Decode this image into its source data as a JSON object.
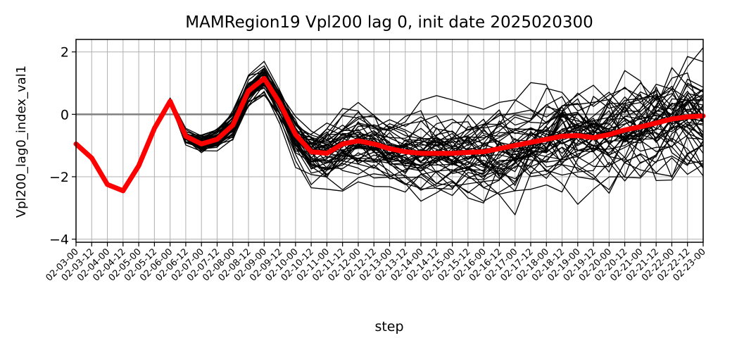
{
  "chart_data": {
    "type": "line",
    "title": "MAMRegion19 Vpl200 lag 0, init date 2025020300",
    "xlabel": "step",
    "ylabel": "Vpl200_lag0_index_val1",
    "ylim": [
      -4.1,
      2.4
    ],
    "yticks": [
      2,
      0,
      -2,
      -4
    ],
    "ytick_labels": [
      "2",
      "0",
      "−2",
      "−4"
    ],
    "grid": true,
    "x": [
      "02-03-00",
      "02-03-12",
      "02-04-00",
      "02-04-12",
      "02-05-00",
      "02-05-12",
      "02-06-00",
      "02-06-12",
      "02-07-00",
      "02-07-12",
      "02-08-00",
      "02-08-12",
      "02-09-00",
      "02-09-12",
      "02-10-00",
      "02-10-12",
      "02-11-00",
      "02-11-12",
      "02-12-00",
      "02-12-12",
      "02-13-00",
      "02-13-12",
      "02-14-00",
      "02-14-12",
      "02-15-00",
      "02-15-12",
      "02-16-00",
      "02-16-12",
      "02-17-00",
      "02-17-12",
      "02-18-00",
      "02-18-12",
      "02-19-00",
      "02-19-12",
      "02-20-00",
      "02-20-12",
      "02-21-00",
      "02-21-12",
      "02-22-00",
      "02-22-12",
      "02-23-00"
    ],
    "reference_line": {
      "y": 0,
      "color": "#808080"
    },
    "ensemble": {
      "color": "#000000",
      "members": 50,
      "start_index": 5,
      "mean": [
        -0.45,
        0.42,
        -0.7,
        -0.95,
        -0.8,
        -0.35,
        0.75,
        1.15,
        0.35,
        -0.65,
        -1.2,
        -1.25,
        -0.95,
        -0.85,
        -0.95,
        -1.1,
        -1.2,
        -1.25,
        -1.25,
        -1.25,
        -1.22,
        -1.2,
        -1.1,
        -1.0,
        -0.9,
        -0.8,
        -0.7,
        -0.68,
        -0.75,
        -0.65,
        -0.5,
        -0.4,
        -0.28,
        -0.15,
        -0.08,
        -0.05
      ],
      "spread": [
        0.06,
        0.08,
        0.18,
        0.22,
        0.25,
        0.35,
        0.35,
        0.3,
        0.38,
        0.45,
        0.55,
        0.65,
        0.65,
        0.68,
        0.7,
        0.72,
        0.72,
        0.75,
        0.75,
        0.78,
        0.8,
        0.82,
        0.85,
        0.9,
        0.95,
        1.0,
        1.02,
        1.05,
        1.08,
        1.1,
        1.12,
        1.15,
        1.15,
        1.18,
        1.2,
        1.2
      ],
      "min": -4.1,
      "max": 2.4
    },
    "series": [
      {
        "color": "#ff0000",
        "values": [
          -0.95,
          -1.4,
          -2.25,
          -2.45,
          -1.65,
          -0.45,
          0.42,
          -0.7,
          -0.95,
          -0.8,
          -0.35,
          0.75,
          1.15,
          0.35,
          -0.65,
          -1.2,
          -1.25,
          -0.95,
          -0.85,
          -0.95,
          -1.1,
          -1.2,
          -1.25,
          -1.25,
          -1.25,
          -1.22,
          -1.2,
          -1.1,
          -1.0,
          -0.9,
          -0.8,
          -0.7,
          -0.68,
          -0.75,
          -0.65,
          -0.5,
          -0.4,
          -0.28,
          -0.15,
          -0.08,
          -0.05
        ]
      }
    ]
  }
}
